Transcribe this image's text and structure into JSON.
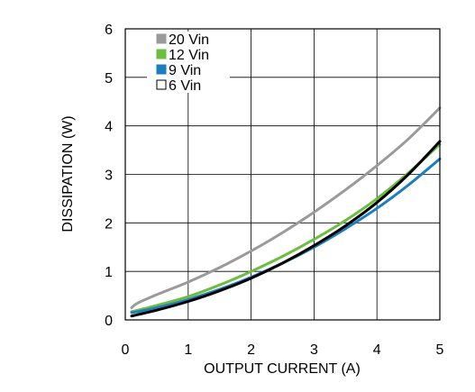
{
  "chart_data": {
    "type": "line",
    "xlabel": "OUTPUT CURRENT (A)",
    "ylabel": "DISSIPATION (W)",
    "xlim": [
      0,
      5
    ],
    "ylim": [
      0,
      6
    ],
    "xticks": [
      "0",
      "1",
      "2",
      "3",
      "4",
      "5"
    ],
    "yticks": [
      "0",
      "1",
      "2",
      "3",
      "4",
      "5",
      "6"
    ],
    "grid": true,
    "legend_position": "top-left",
    "series": [
      {
        "name": "20 Vin",
        "color": "#9a9a9a",
        "marker": "filled-square",
        "x": [
          0.1,
          0.2,
          0.5,
          1.0,
          1.5,
          2.0,
          2.5,
          3.0,
          3.5,
          4.0,
          4.5,
          5.0
        ],
        "y": [
          0.25,
          0.35,
          0.52,
          0.78,
          1.08,
          1.42,
          1.8,
          2.22,
          2.68,
          3.18,
          3.73,
          4.37
        ]
      },
      {
        "name": "12 Vin",
        "color": "#6cbf3c",
        "marker": "filled-square",
        "x": [
          0.1,
          0.2,
          0.5,
          1.0,
          1.5,
          2.0,
          2.5,
          3.0,
          3.5,
          4.0,
          4.5,
          5.0
        ],
        "y": [
          0.17,
          0.2,
          0.3,
          0.48,
          0.72,
          1.0,
          1.31,
          1.66,
          2.05,
          2.5,
          3.03,
          3.62
        ]
      },
      {
        "name": "9 Vin",
        "color": "#1a7fc1",
        "marker": "filled-square",
        "x": [
          0.1,
          0.2,
          0.5,
          1.0,
          1.5,
          2.0,
          2.5,
          3.0,
          3.5,
          4.0,
          4.5,
          5.0
        ],
        "y": [
          0.15,
          0.17,
          0.25,
          0.42,
          0.63,
          0.88,
          1.17,
          1.5,
          1.88,
          2.3,
          2.78,
          3.32
        ]
      },
      {
        "name": "6 Vin",
        "color": "#000000",
        "marker": "open-square",
        "x": [
          0.1,
          0.2,
          0.5,
          1.0,
          1.5,
          2.0,
          2.5,
          3.0,
          3.5,
          4.0,
          4.5,
          5.0
        ],
        "y": [
          0.08,
          0.11,
          0.2,
          0.38,
          0.6,
          0.86,
          1.17,
          1.53,
          1.94,
          2.42,
          3.0,
          3.68
        ]
      }
    ]
  }
}
